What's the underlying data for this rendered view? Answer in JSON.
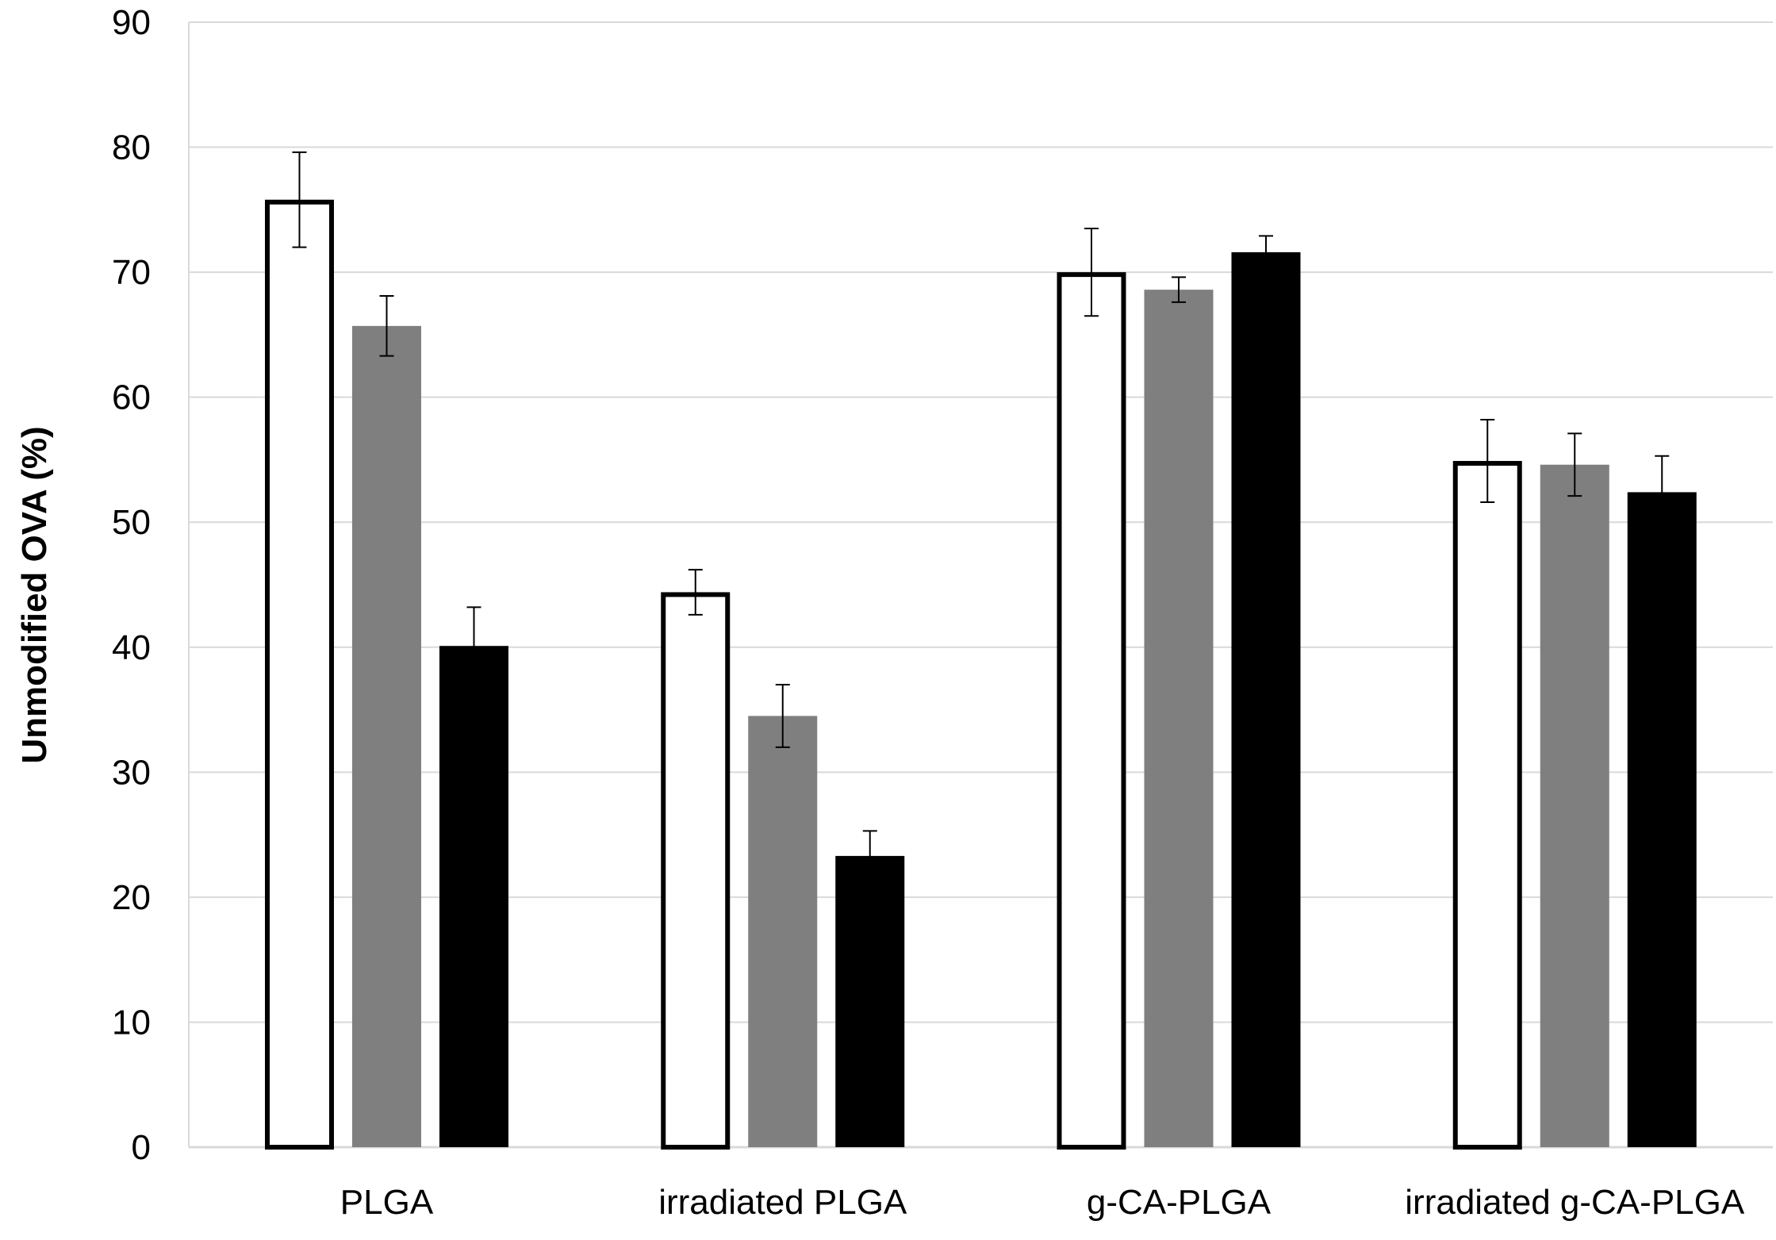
{
  "chart_data": {
    "type": "bar",
    "title": "",
    "xlabel": "",
    "ylabel": "Unmodified OVA (%)",
    "ylim": [
      0,
      90
    ],
    "yticks": [
      0,
      10,
      20,
      30,
      40,
      50,
      60,
      70,
      80,
      90
    ],
    "grid": true,
    "legend": "none",
    "categories": [
      "PLGA",
      "irradiated PLGA",
      "g-CA-PLGA",
      "irradiated g-CA-PLGA"
    ],
    "series": [
      {
        "name": "series 1",
        "fill": "#ffffff",
        "stroke": "#000000",
        "values": [
          75.8,
          44.4,
          70.0,
          54.9
        ],
        "errors": [
          3.8,
          1.8,
          3.5,
          3.3
        ]
      },
      {
        "name": "series 2",
        "fill": "#7f7f7f",
        "stroke": "#7f7f7f",
        "values": [
          65.7,
          34.5,
          68.6,
          54.6
        ],
        "errors": [
          2.4,
          2.5,
          1.0,
          2.5
        ]
      },
      {
        "name": "series 3",
        "fill": "#000000",
        "stroke": "#000000",
        "values": [
          40.1,
          23.3,
          71.6,
          52.4
        ],
        "errors": [
          3.1,
          2.0,
          1.3,
          2.9
        ]
      }
    ]
  }
}
